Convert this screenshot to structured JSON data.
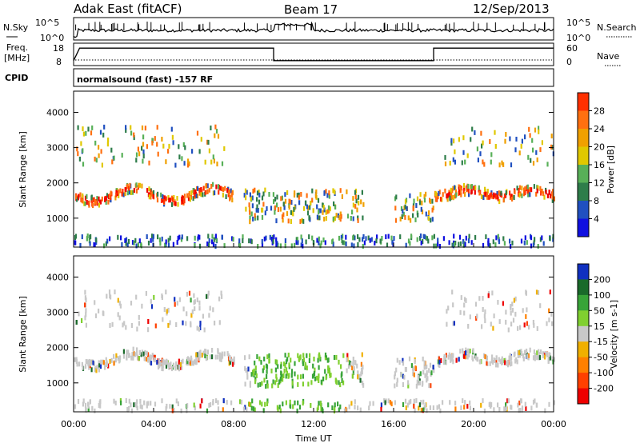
{
  "header": {
    "site": "Adak East (fitACF)",
    "beam": "Beam 17",
    "date": "12/Sep/2013"
  },
  "noise_panel": {
    "left_label": "N.Sky",
    "left_ticks": [
      "10^5",
      "10^0"
    ],
    "right_label": "N.Search",
    "right_ticks": [
      "10^5",
      "10^0"
    ]
  },
  "freq_panel": {
    "left_label_1": "Freq.",
    "left_label_2": "[MHz]",
    "left_ticks": [
      "18",
      "8"
    ],
    "right_label": "Nave",
    "right_ticks": [
      "60",
      "0"
    ]
  },
  "cpid": {
    "label": "CPID",
    "program": "normalsound (fast) -157 RF"
  },
  "colors": {
    "power_scale": [
      "#1010e0",
      "#2050c0",
      "#2e7d4a",
      "#58b058",
      "#e0c800",
      "#f0a000",
      "#ff7010",
      "#ff3000",
      "#ee0000"
    ],
    "velocity_scale": [
      "#1030c0",
      "#1a6a2a",
      "#38a438",
      "#80d030",
      "#c8c8c8",
      "#f0b000",
      "#ff8000",
      "#ff4000",
      "#ee0000"
    ]
  },
  "chart_data": [
    {
      "type": "line",
      "title": "N.Sky / N.Search",
      "x": [
        "00:00",
        "04:00",
        "08:00",
        "10:00",
        "12:00",
        "16:00",
        "20:00",
        "00:00"
      ],
      "series": [
        {
          "name": "N.Sky",
          "values": [
            4,
            4,
            4.3,
            5,
            4.6,
            4.2,
            4.2,
            4.1
          ]
        }
      ]
    },
    {
      "type": "line",
      "title": "Freq. / Nave",
      "xlim": [
        "00:00",
        "24:00"
      ],
      "series": [
        {
          "name": "Freq.",
          "x_hours": [
            0,
            0.3,
            10,
            10,
            18,
            18,
            24
          ],
          "values": [
            8,
            18,
            18,
            8,
            8,
            18,
            18
          ]
        },
        {
          "name": "Nave",
          "x_hours": [
            0,
            24
          ],
          "values": [
            0,
            0
          ]
        }
      ]
    },
    {
      "type": "heatmap",
      "ylabel": "Slant Range [km]",
      "colorbar_label": "Power [dB]",
      "colorbar_ticks": [
        "4",
        "8",
        "12",
        "16",
        "20",
        "24",
        "28"
      ],
      "y_ticks": [
        "1000",
        "2000",
        "3000",
        "4000"
      ],
      "ylim": [
        180,
        4600
      ],
      "xlim": [
        "00:00",
        "24:00"
      ]
    },
    {
      "type": "heatmap",
      "ylabel": "Slant Range [km]",
      "colorbar_label": "Velocity [m s-1]",
      "colorbar_ticks": [
        "200",
        "100",
        "50",
        "15",
        "-15",
        "-50",
        "-100",
        "-200"
      ],
      "y_ticks": [
        "1000",
        "2000",
        "3000",
        "4000"
      ],
      "ylim": [
        180,
        4600
      ],
      "xlim": [
        "00:00",
        "24:00"
      ]
    }
  ],
  "x_axis": {
    "ticks": [
      "00:00",
      "04:00",
      "08:00",
      "12:00",
      "16:00",
      "20:00",
      "00:00"
    ],
    "label": "Time UT"
  }
}
